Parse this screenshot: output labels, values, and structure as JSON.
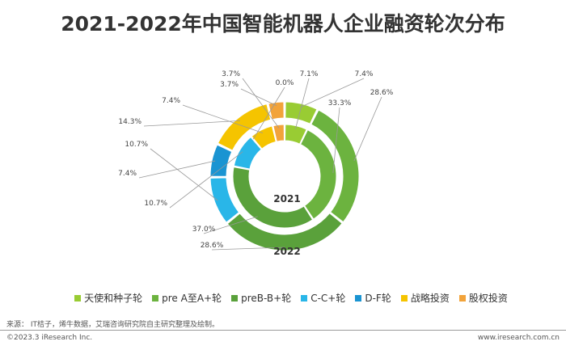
{
  "title": "2021-2022年中国智能机器人企业融资轮次分布",
  "source": "来源： IT桔子，烯牛数据，艾瑞咨询研究院自主研究整理及绘制。",
  "copyright": "©2023.3 iResearch Inc.",
  "website": "www.iresearch.com.cn",
  "chart_data": {
    "type": "pie",
    "categories": [
      "天使和种子轮",
      "pre A至A+轮",
      "preB-B+轮",
      "C-C+轮",
      "D-F轮",
      "战略投资",
      "股权投资"
    ],
    "colors": [
      "#99CC33",
      "#6CB33F",
      "#5AA13B",
      "#29B6E8",
      "#1A94D2",
      "#F5C400",
      "#F2A33A"
    ],
    "series": [
      {
        "name": "2021",
        "values": [
          7.1,
          33.3,
          37.0,
          10.7,
          0.0,
          7.4,
          3.7
        ],
        "labels": [
          "7.1%",
          "33.3%",
          "37.0%",
          "10.7%",
          "0.0%",
          "7.4%",
          "3.7%"
        ]
      },
      {
        "name": "2022",
        "values": [
          7.4,
          28.6,
          28.6,
          10.7,
          7.4,
          14.3,
          3.7
        ],
        "labels": [
          "7.4%",
          "28.6%",
          "28.6%",
          "10.7%",
          "7.4%",
          "14.3%",
          "3.7%"
        ]
      }
    ]
  }
}
